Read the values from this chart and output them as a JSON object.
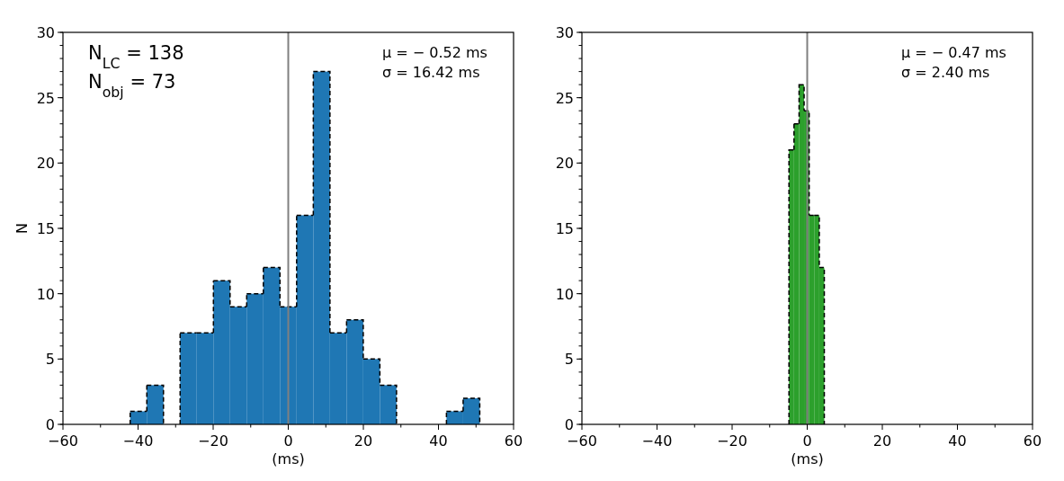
{
  "chart_data": [
    {
      "type": "histogram",
      "xlabel": "(ms)",
      "ylabel": "N",
      "color": "#1f77b4",
      "line_style": "dashed",
      "bins": [
        -42.1,
        -37.67,
        -33.23,
        -28.8,
        -24.37,
        -19.93,
        -15.5,
        -11.07,
        -6.63,
        -2.2,
        2.23,
        6.67,
        11.1,
        15.53,
        19.97,
        24.4,
        28.83,
        33.27,
        37.7,
        42.13,
        46.57,
        51.0
      ],
      "values": [
        1,
        3,
        0,
        7,
        7,
        11,
        9,
        10,
        12,
        9,
        16,
        27,
        7,
        8,
        5,
        3,
        0,
        0,
        0,
        1,
        2
      ],
      "xlim": [
        -60,
        60
      ],
      "xticks": [
        -60,
        {
          "value": -50,
          "label": null
        },
        -40,
        {
          "value": -30,
          "label": null
        },
        -20,
        {
          "value": -10,
          "label": null
        },
        0,
        {
          "value": 10,
          "label": null
        },
        20,
        {
          "value": 30,
          "label": null
        },
        40,
        {
          "value": 50,
          "label": null
        },
        60
      ],
      "ylim": [
        0,
        30
      ],
      "yticks": [
        0,
        5,
        10,
        15,
        20,
        25,
        30
      ],
      "ref_lines": [
        {
          "axis": "x",
          "value": 0,
          "color": "#808080"
        }
      ],
      "annotations": [
        "N$_{LC}$ = 138",
        "N$_{obj}$ = 73",
        "μ = − 0.52  ms",
        "σ = 16.42  ms"
      ]
    },
    {
      "type": "histogram",
      "xlabel": "(ms)",
      "color": "#2ca02c",
      "line_style": "dashed",
      "bins": [
        -4.86,
        -3.52,
        -2.17,
        -0.83,
        0.52,
        1.86,
        3.21,
        4.55
      ],
      "values": [
        21,
        23,
        26,
        24,
        16,
        16,
        12
      ],
      "xlim": [
        -60,
        60
      ],
      "xticks": [
        -60,
        {
          "value": -50,
          "label": null
        },
        -40,
        {
          "value": -30,
          "label": null
        },
        -20,
        {
          "value": -10,
          "label": null
        },
        0,
        {
          "value": 10,
          "label": null
        },
        20,
        {
          "value": 30,
          "label": null
        },
        40,
        {
          "value": 50,
          "label": null
        },
        60
      ],
      "ylim": [
        0,
        30
      ],
      "yticks": [
        0,
        5,
        10,
        15,
        20,
        25,
        30
      ],
      "ref_lines": [
        {
          "axis": "x",
          "value": 0,
          "color": "#808080"
        }
      ],
      "annotations": [
        "μ = − 0.47  ms",
        "σ = 2.40  ms"
      ]
    }
  ]
}
